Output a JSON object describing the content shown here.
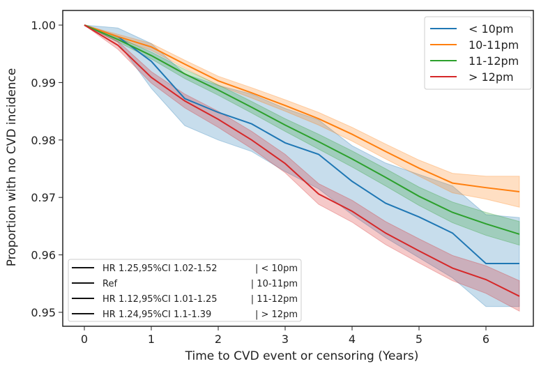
{
  "chart_data": {
    "type": "line",
    "title": "",
    "xlabel": "Time to CVD event or censoring (Years)",
    "ylabel": "Proportion with no CVD incidence",
    "xlim": [
      -0.3,
      6.8
    ],
    "ylim": [
      0.948,
      1.0025
    ],
    "xticks": [
      "0",
      "1",
      "2",
      "3",
      "4",
      "5",
      "6"
    ],
    "xtick_values": [
      0,
      1,
      2,
      3,
      4,
      5,
      6
    ],
    "yticks": [
      "0.95",
      "0.96",
      "0.97",
      "0.98",
      "0.99",
      "1.00"
    ],
    "ytick_values": [
      0.95,
      0.96,
      0.97,
      0.98,
      0.99,
      1.0
    ],
    "grid": false,
    "legend_position": "top-right",
    "x": [
      0,
      0.5,
      1,
      1.5,
      2,
      2.5,
      3,
      3.5,
      4,
      4.5,
      5,
      5.5,
      6,
      6.5
    ],
    "series": [
      {
        "name": "< 10pm",
        "color": "#1f77b4",
        "values": [
          1.0,
          0.998,
          0.9937,
          0.9872,
          0.9848,
          0.9828,
          0.9795,
          0.9775,
          0.9728,
          0.969,
          0.9666,
          0.9638,
          0.9585,
          0.9585
        ],
        "ci_upper": [
          1.0,
          0.9995,
          0.9968,
          0.9915,
          0.9895,
          0.988,
          0.9855,
          0.9835,
          0.979,
          0.976,
          0.974,
          0.972,
          0.967,
          0.9665
        ],
        "ci_lower": [
          1.0,
          0.997,
          0.989,
          0.9825,
          0.98,
          0.978,
          0.9745,
          0.9715,
          0.967,
          0.963,
          0.9595,
          0.956,
          0.951,
          0.951
        ]
      },
      {
        "name": "10-11pm",
        "color": "#ff7f0e",
        "values": [
          1.0,
          0.998,
          0.9962,
          0.9932,
          0.9903,
          0.9882,
          0.986,
          0.9837,
          0.981,
          0.978,
          0.9751,
          0.9725,
          0.9717,
          0.971
        ],
        "ci_upper": [
          1.0,
          0.9984,
          0.9968,
          0.9939,
          0.9911,
          0.9891,
          0.987,
          0.9848,
          0.9822,
          0.9793,
          0.9765,
          0.9742,
          0.9737,
          0.9737
        ],
        "ci_lower": [
          1.0,
          0.9976,
          0.9956,
          0.9925,
          0.9895,
          0.9873,
          0.985,
          0.9826,
          0.9798,
          0.9767,
          0.9737,
          0.9708,
          0.9697,
          0.9683
        ]
      },
      {
        "name": "11-12pm",
        "color": "#2ca02c",
        "values": [
          1.0,
          0.9975,
          0.9947,
          0.9915,
          0.9887,
          0.9857,
          0.9826,
          0.9797,
          0.9767,
          0.9735,
          0.9702,
          0.9674,
          0.9654,
          0.9636
        ],
        "ci_upper": [
          1.0,
          0.9979,
          0.9953,
          0.9923,
          0.9896,
          0.9867,
          0.9837,
          0.981,
          0.9781,
          0.975,
          0.9718,
          0.9692,
          0.9674,
          0.9658
        ],
        "ci_lower": [
          1.0,
          0.9971,
          0.9941,
          0.9907,
          0.9878,
          0.9847,
          0.9815,
          0.9784,
          0.9753,
          0.972,
          0.9686,
          0.9656,
          0.9634,
          0.9617
        ]
      },
      {
        "name": "> 12pm",
        "color": "#d62728",
        "values": [
          1.0,
          0.9965,
          0.9909,
          0.9868,
          0.9836,
          0.98,
          0.9759,
          0.9706,
          0.9676,
          0.9638,
          0.9607,
          0.9577,
          0.9557,
          0.9528
        ],
        "ci_upper": [
          1.0,
          0.9972,
          0.9919,
          0.988,
          0.985,
          0.9815,
          0.9775,
          0.9724,
          0.9695,
          0.9658,
          0.9628,
          0.9599,
          0.9581,
          0.9555
        ],
        "ci_lower": [
          1.0,
          0.9958,
          0.9899,
          0.9856,
          0.9822,
          0.9785,
          0.9743,
          0.9688,
          0.9657,
          0.9618,
          0.9586,
          0.9555,
          0.9533,
          0.9502
        ]
      }
    ],
    "hr_legend": [
      {
        "label": "HR 1.25,95%CI 1.02-1.52",
        "group": "| < 10pm"
      },
      {
        "label": "Ref",
        "group": "| 10-11pm"
      },
      {
        "label": "HR 1.12,95%CI 1.01-1.25",
        "group": "| 11-12pm"
      },
      {
        "label": "HR 1.24,95%CI 1.1-1.39",
        "group": "| > 12pm"
      }
    ]
  }
}
